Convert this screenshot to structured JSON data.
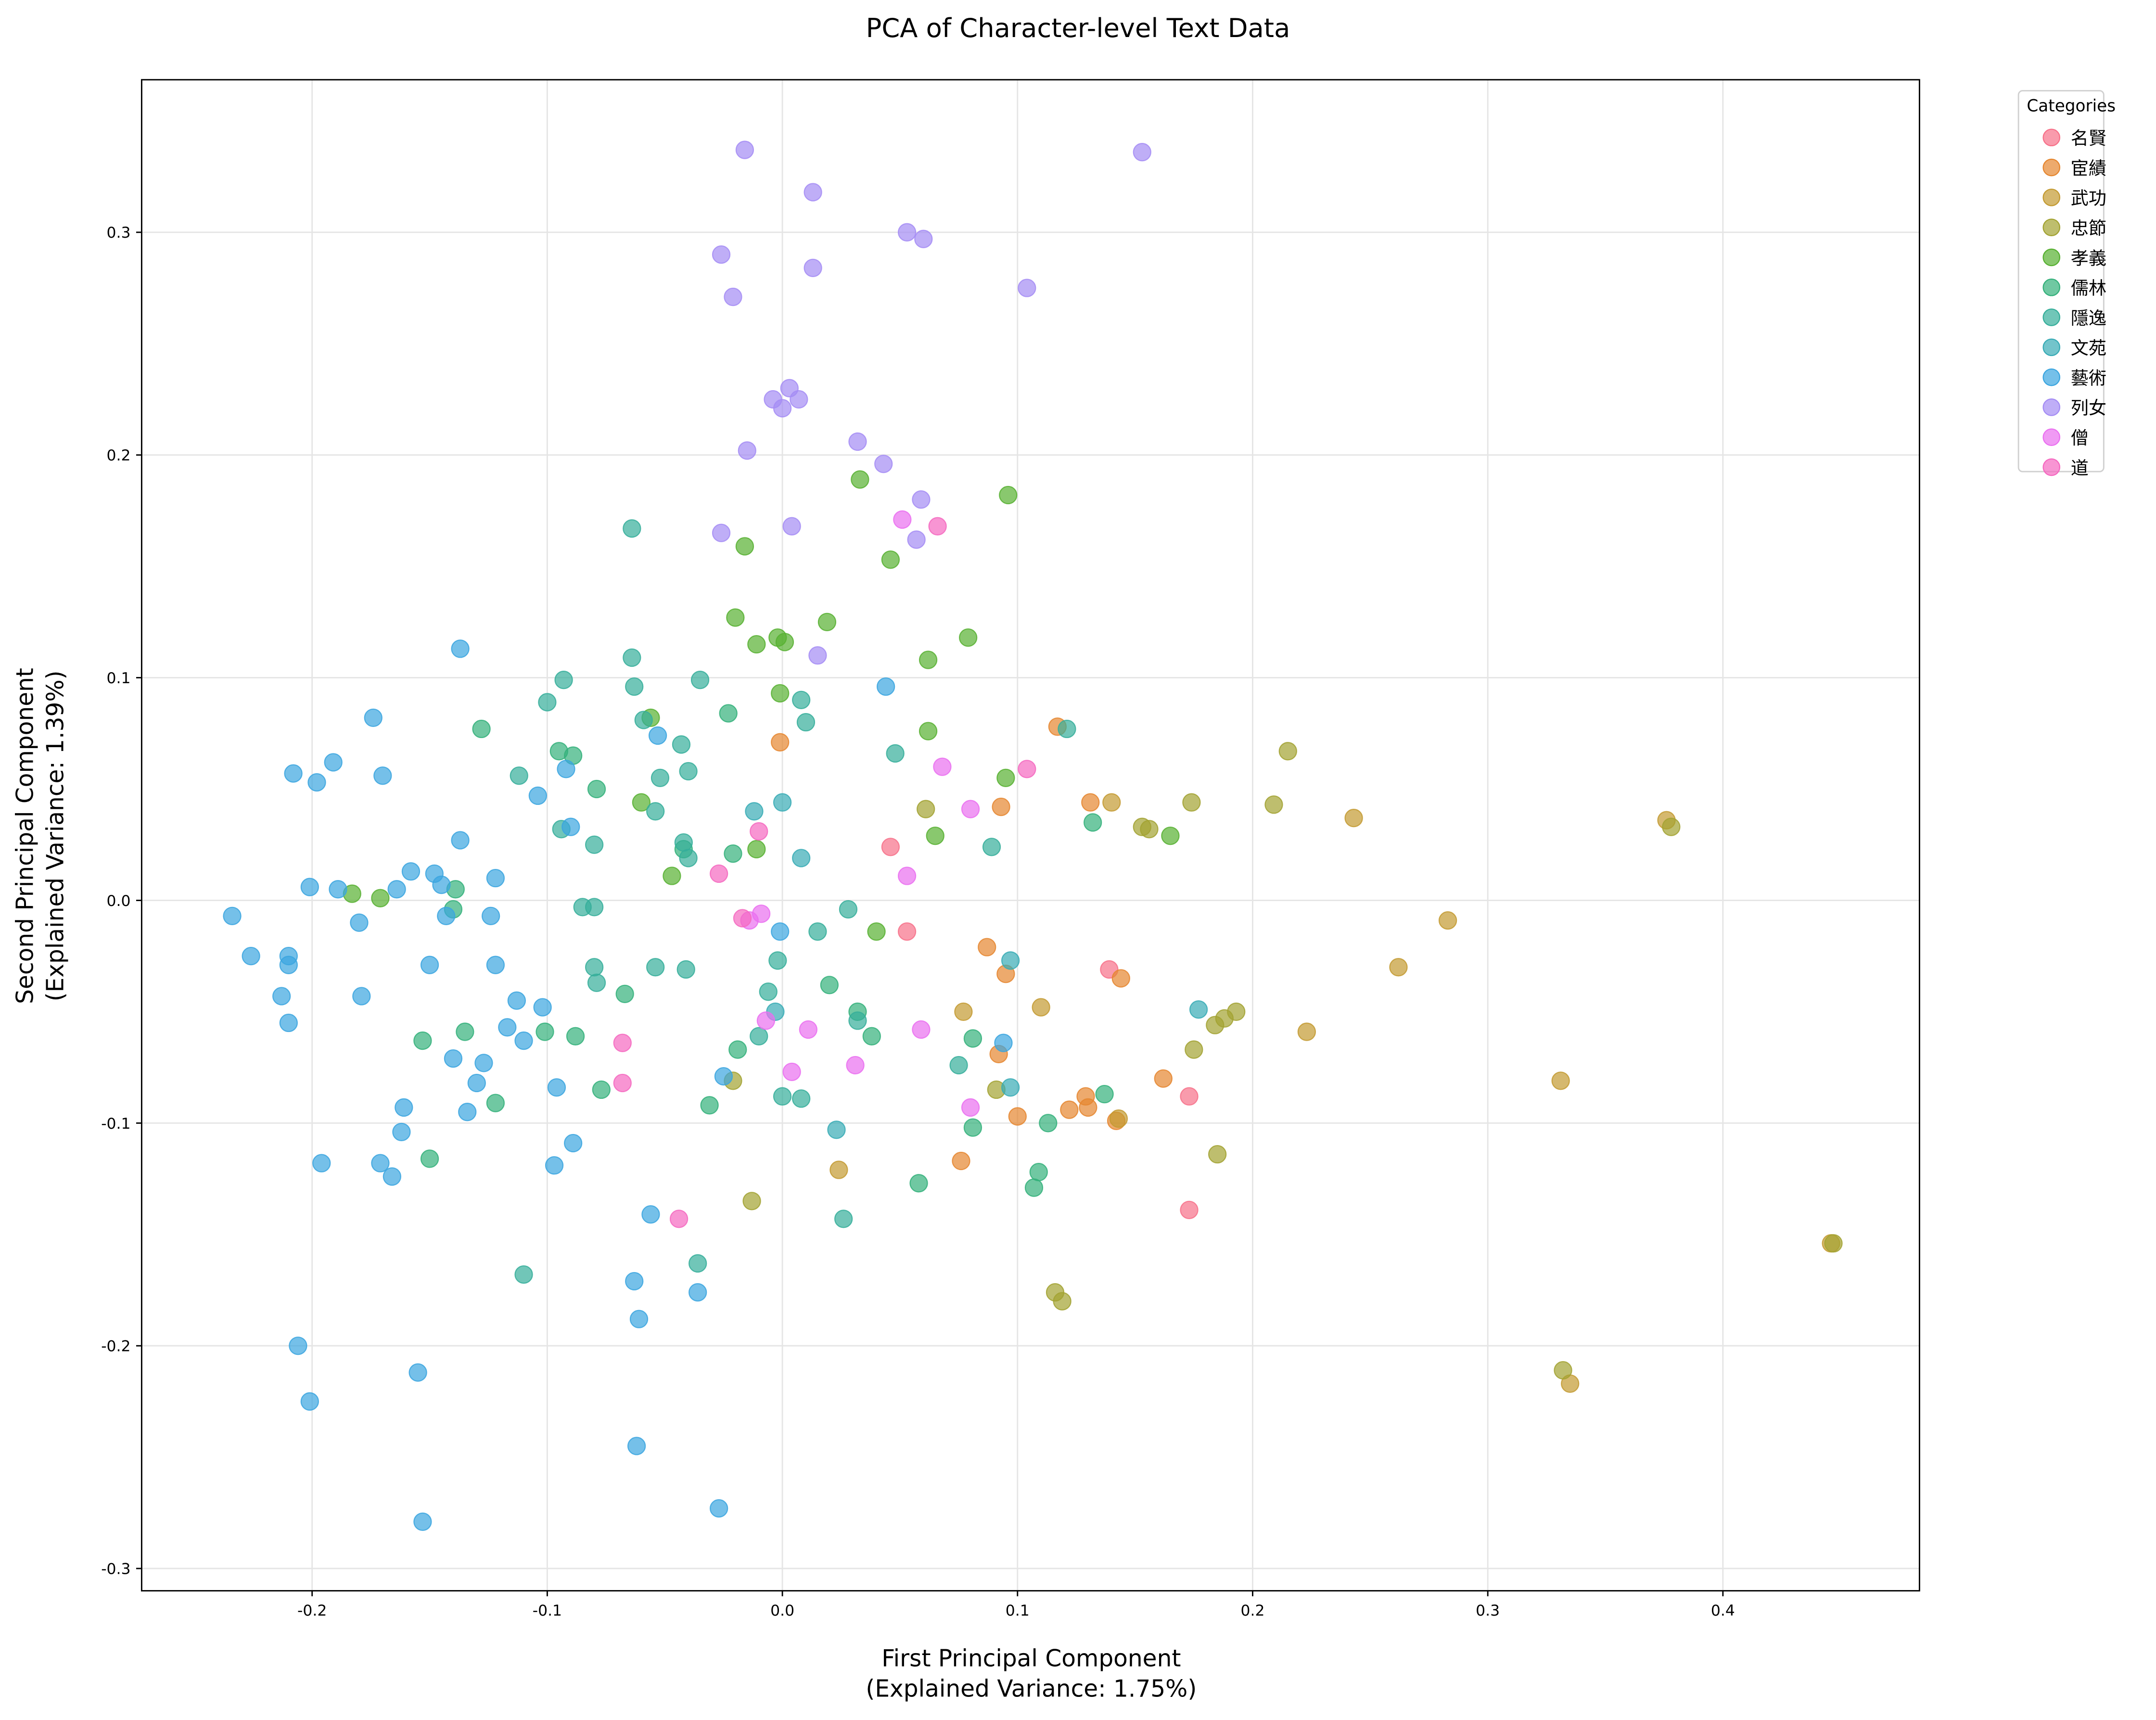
{
  "chart_data": {
    "type": "scatter",
    "title": "PCA of Character-level Text Data",
    "xlabel": [
      "First Principal Component",
      "(Explained Variance: 1.75%)"
    ],
    "ylabel": [
      "Second Principal Component",
      "(Explained Variance: 1.39%)"
    ],
    "xlim": [
      -0.2725,
      0.4836
    ],
    "ylim": [
      -0.31,
      0.3685
    ],
    "xticks": [
      -0.2,
      -0.1,
      0.0,
      0.1,
      0.2,
      0.3,
      0.4
    ],
    "xtick_labels": [
      "-0.2",
      "-0.1",
      "0.0",
      "0.1",
      "0.2",
      "0.3",
      "0.4"
    ],
    "yticks": [
      -0.3,
      -0.2,
      -0.1,
      0.0,
      0.1,
      0.2,
      0.3
    ],
    "ytick_labels": [
      "-0.3",
      "-0.2",
      "-0.1",
      "0.0",
      "0.1",
      "0.2",
      "0.3"
    ],
    "grid": true,
    "legend": {
      "title": "Categories",
      "placement": "outside-top-right"
    },
    "series": [
      {
        "name": "名賢",
        "color": "#f77189",
        "points": [
          [
            0.046,
            0.024
          ],
          [
            0.053,
            -0.014
          ],
          [
            0.139,
            -0.031
          ],
          [
            0.173,
            -0.088
          ],
          [
            0.173,
            -0.139
          ]
        ]
      },
      {
        "name": "宦績",
        "color": "#e5862f",
        "points": [
          [
            -0.001,
            0.071
          ],
          [
            0.117,
            0.078
          ],
          [
            0.131,
            0.044
          ],
          [
            0.093,
            0.042
          ],
          [
            0.087,
            -0.021
          ],
          [
            0.095,
            -0.033
          ],
          [
            0.144,
            -0.035
          ],
          [
            0.092,
            -0.069
          ],
          [
            0.162,
            -0.08
          ],
          [
            0.129,
            -0.088
          ],
          [
            0.13,
            -0.093
          ],
          [
            0.122,
            -0.094
          ],
          [
            0.1,
            -0.097
          ],
          [
            0.142,
            -0.099
          ],
          [
            0.076,
            -0.117
          ]
        ]
      },
      {
        "name": "武功",
        "color": "#c39a31",
        "points": [
          [
            0.243,
            0.037
          ],
          [
            0.14,
            0.044
          ],
          [
            0.376,
            0.036
          ],
          [
            0.283,
            -0.009
          ],
          [
            0.262,
            -0.03
          ],
          [
            0.223,
            -0.059
          ],
          [
            0.331,
            -0.081
          ],
          [
            0.335,
            -0.217
          ],
          [
            0.446,
            -0.154
          ],
          [
            0.077,
            -0.05
          ],
          [
            0.11,
            -0.048
          ],
          [
            0.024,
            -0.121
          ],
          [
            0.143,
            -0.098
          ]
        ]
      },
      {
        "name": "忠節",
        "color": "#a2a231",
        "points": [
          [
            0.215,
            0.067
          ],
          [
            0.209,
            0.043
          ],
          [
            0.174,
            0.044
          ],
          [
            0.153,
            0.033
          ],
          [
            0.156,
            0.032
          ],
          [
            0.061,
            0.041
          ],
          [
            0.378,
            0.033
          ],
          [
            0.175,
            -0.067
          ],
          [
            0.184,
            -0.056
          ],
          [
            0.188,
            -0.053
          ],
          [
            0.193,
            -0.05
          ],
          [
            0.185,
            -0.114
          ],
          [
            0.116,
            -0.176
          ],
          [
            0.119,
            -0.18
          ],
          [
            0.332,
            -0.211
          ],
          [
            0.447,
            -0.154
          ],
          [
            0.091,
            -0.085
          ],
          [
            -0.021,
            -0.081
          ],
          [
            -0.013,
            -0.135
          ]
        ]
      },
      {
        "name": "孝義",
        "color": "#57b031",
        "points": [
          [
            0.033,
            0.189
          ],
          [
            0.096,
            0.182
          ],
          [
            -0.016,
            0.159
          ],
          [
            0.046,
            0.153
          ],
          [
            -0.02,
            0.127
          ],
          [
            0.019,
            0.125
          ],
          [
            -0.002,
            0.118
          ],
          [
            0.001,
            0.116
          ],
          [
            -0.011,
            0.115
          ],
          [
            0.079,
            0.118
          ],
          [
            0.062,
            0.108
          ],
          [
            -0.001,
            0.093
          ],
          [
            0.062,
            0.076
          ],
          [
            -0.056,
            0.082
          ],
          [
            0.095,
            0.055
          ],
          [
            -0.06,
            0.044
          ],
          [
            0.065,
            0.029
          ],
          [
            0.165,
            0.029
          ],
          [
            -0.011,
            0.023
          ],
          [
            -0.047,
            0.011
          ],
          [
            0.04,
            -0.014
          ],
          [
            -0.171,
            0.001
          ],
          [
            -0.183,
            0.003
          ]
        ]
      },
      {
        "name": "儒林",
        "color": "#33b07a",
        "points": [
          [
            -0.128,
            0.077
          ],
          [
            -0.089,
            0.065
          ],
          [
            -0.023,
            0.084
          ],
          [
            -0.095,
            0.067
          ],
          [
            -0.079,
            0.05
          ],
          [
            -0.042,
            0.023
          ],
          [
            -0.021,
            0.021
          ],
          [
            -0.139,
            0.005
          ],
          [
            -0.14,
            -0.004
          ],
          [
            0.02,
            -0.038
          ],
          [
            -0.067,
            -0.042
          ],
          [
            0.032,
            -0.05
          ],
          [
            -0.135,
            -0.059
          ],
          [
            -0.101,
            -0.059
          ],
          [
            -0.088,
            -0.061
          ],
          [
            -0.153,
            -0.063
          ],
          [
            -0.019,
            -0.067
          ],
          [
            0.038,
            -0.061
          ],
          [
            0.081,
            -0.062
          ],
          [
            -0.077,
            -0.085
          ],
          [
            -0.122,
            -0.091
          ],
          [
            -0.031,
            -0.092
          ],
          [
            0.137,
            -0.087
          ],
          [
            0.081,
            -0.102
          ],
          [
            0.113,
            -0.1
          ],
          [
            -0.15,
            -0.116
          ],
          [
            0.109,
            -0.122
          ],
          [
            0.107,
            -0.129
          ],
          [
            0.058,
            -0.127
          ],
          [
            0.132,
            0.035
          ]
        ]
      },
      {
        "name": "隱逸",
        "color": "#35ae9a",
        "points": [
          [
            -0.064,
            0.167
          ],
          [
            -0.064,
            0.109
          ],
          [
            -0.093,
            0.099
          ],
          [
            -0.035,
            0.099
          ],
          [
            -0.063,
            0.096
          ],
          [
            -0.1,
            0.089
          ],
          [
            -0.043,
            0.07
          ],
          [
            -0.059,
            0.081
          ],
          [
            -0.052,
            0.055
          ],
          [
            -0.112,
            0.056
          ],
          [
            -0.04,
            0.058
          ],
          [
            -0.094,
            0.032
          ],
          [
            -0.08,
            0.025
          ],
          [
            -0.042,
            0.026
          ],
          [
            -0.04,
            0.019
          ],
          [
            -0.054,
            0.04
          ],
          [
            0.01,
            0.08
          ],
          [
            0.048,
            0.066
          ],
          [
            0.121,
            0.077
          ],
          [
            0.008,
            0.09
          ],
          [
            0.089,
            0.024
          ],
          [
            -0.085,
            -0.003
          ],
          [
            -0.08,
            -0.003
          ],
          [
            0.028,
            -0.004
          ],
          [
            0.015,
            -0.014
          ],
          [
            -0.002,
            -0.027
          ],
          [
            -0.08,
            -0.03
          ],
          [
            -0.079,
            -0.037
          ],
          [
            -0.041,
            -0.031
          ],
          [
            -0.054,
            -0.03
          ],
          [
            -0.006,
            -0.041
          ],
          [
            0.032,
            -0.054
          ],
          [
            -0.01,
            -0.061
          ],
          [
            0.075,
            -0.074
          ],
          [
            0.0,
            -0.088
          ],
          [
            0.008,
            -0.089
          ],
          [
            0.026,
            -0.143
          ],
          [
            -0.036,
            -0.163
          ],
          [
            -0.11,
            -0.168
          ]
        ]
      },
      {
        "name": "文苑",
        "color": "#37abb5",
        "points": [
          [
            -0.012,
            0.04
          ],
          [
            0.0,
            0.044
          ],
          [
            0.008,
            0.019
          ],
          [
            0.097,
            -0.027
          ],
          [
            0.177,
            -0.049
          ],
          [
            -0.003,
            -0.05
          ],
          [
            0.097,
            -0.084
          ],
          [
            0.023,
            -0.103
          ]
        ]
      },
      {
        "name": "藝術",
        "color": "#3aa5df",
        "points": [
          [
            -0.137,
            0.113
          ],
          [
            0.044,
            0.096
          ],
          [
            -0.174,
            0.082
          ],
          [
            -0.053,
            0.074
          ],
          [
            -0.191,
            0.062
          ],
          [
            -0.208,
            0.057
          ],
          [
            -0.17,
            0.056
          ],
          [
            -0.198,
            0.053
          ],
          [
            -0.104,
            0.047
          ],
          [
            -0.092,
            0.059
          ],
          [
            -0.09,
            0.033
          ],
          [
            -0.137,
            0.027
          ],
          [
            -0.201,
            0.006
          ],
          [
            -0.189,
            0.005
          ],
          [
            -0.164,
            0.005
          ],
          [
            -0.158,
            0.013
          ],
          [
            -0.148,
            0.012
          ],
          [
            -0.145,
            0.007
          ],
          [
            -0.122,
            0.01
          ],
          [
            -0.18,
            -0.01
          ],
          [
            -0.234,
            -0.007
          ],
          [
            -0.143,
            -0.007
          ],
          [
            -0.124,
            -0.007
          ],
          [
            -0.226,
            -0.025
          ],
          [
            -0.21,
            -0.025
          ],
          [
            -0.21,
            -0.029
          ],
          [
            -0.15,
            -0.029
          ],
          [
            -0.122,
            -0.029
          ],
          [
            -0.001,
            -0.014
          ],
          [
            -0.213,
            -0.043
          ],
          [
            -0.179,
            -0.043
          ],
          [
            -0.113,
            -0.045
          ],
          [
            -0.102,
            -0.048
          ],
          [
            -0.21,
            -0.055
          ],
          [
            -0.117,
            -0.057
          ],
          [
            -0.11,
            -0.063
          ],
          [
            -0.14,
            -0.071
          ],
          [
            -0.127,
            -0.073
          ],
          [
            -0.13,
            -0.082
          ],
          [
            -0.096,
            -0.084
          ],
          [
            -0.025,
            -0.079
          ],
          [
            0.094,
            -0.064
          ],
          [
            -0.134,
            -0.095
          ],
          [
            -0.161,
            -0.093
          ],
          [
            -0.162,
            -0.104
          ],
          [
            -0.089,
            -0.109
          ],
          [
            -0.196,
            -0.118
          ],
          [
            -0.171,
            -0.118
          ],
          [
            -0.166,
            -0.124
          ],
          [
            -0.097,
            -0.119
          ],
          [
            -0.056,
            -0.141
          ],
          [
            -0.063,
            -0.171
          ],
          [
            -0.036,
            -0.176
          ],
          [
            -0.061,
            -0.188
          ],
          [
            -0.206,
            -0.2
          ],
          [
            -0.155,
            -0.212
          ],
          [
            -0.201,
            -0.225
          ],
          [
            -0.062,
            -0.245
          ],
          [
            -0.027,
            -0.273
          ],
          [
            -0.153,
            -0.279
          ]
        ]
      },
      {
        "name": "列女",
        "color": "#a48cf4",
        "points": [
          [
            -0.016,
            0.337
          ],
          [
            0.013,
            0.318
          ],
          [
            0.153,
            0.336
          ],
          [
            -0.026,
            0.29
          ],
          [
            0.053,
            0.3
          ],
          [
            0.06,
            0.297
          ],
          [
            -0.021,
            0.271
          ],
          [
            0.013,
            0.284
          ],
          [
            0.104,
            0.275
          ],
          [
            0.003,
            0.23
          ],
          [
            -0.004,
            0.225
          ],
          [
            0.007,
            0.225
          ],
          [
            0.0,
            0.221
          ],
          [
            -0.015,
            0.202
          ],
          [
            0.032,
            0.206
          ],
          [
            0.043,
            0.196
          ],
          [
            0.059,
            0.18
          ],
          [
            -0.026,
            0.165
          ],
          [
            0.004,
            0.168
          ],
          [
            0.057,
            0.162
          ],
          [
            0.015,
            0.11
          ]
        ]
      },
      {
        "name": "僧",
        "color": "#ea6ff0",
        "points": [
          [
            0.051,
            0.171
          ],
          [
            0.068,
            0.06
          ],
          [
            0.08,
            0.041
          ],
          [
            0.053,
            0.011
          ],
          [
            -0.014,
            -0.009
          ],
          [
            -0.009,
            -0.006
          ],
          [
            -0.007,
            -0.054
          ],
          [
            0.011,
            -0.058
          ],
          [
            0.059,
            -0.058
          ],
          [
            0.004,
            -0.077
          ],
          [
            0.031,
            -0.074
          ],
          [
            0.08,
            -0.093
          ]
        ]
      },
      {
        "name": "道",
        "color": "#f568c0",
        "points": [
          [
            0.066,
            0.168
          ],
          [
            0.104,
            0.059
          ],
          [
            -0.01,
            0.031
          ],
          [
            -0.027,
            0.012
          ],
          [
            -0.017,
            -0.008
          ],
          [
            -0.068,
            -0.064
          ],
          [
            -0.068,
            -0.082
          ],
          [
            -0.044,
            -0.143
          ]
        ]
      }
    ]
  }
}
